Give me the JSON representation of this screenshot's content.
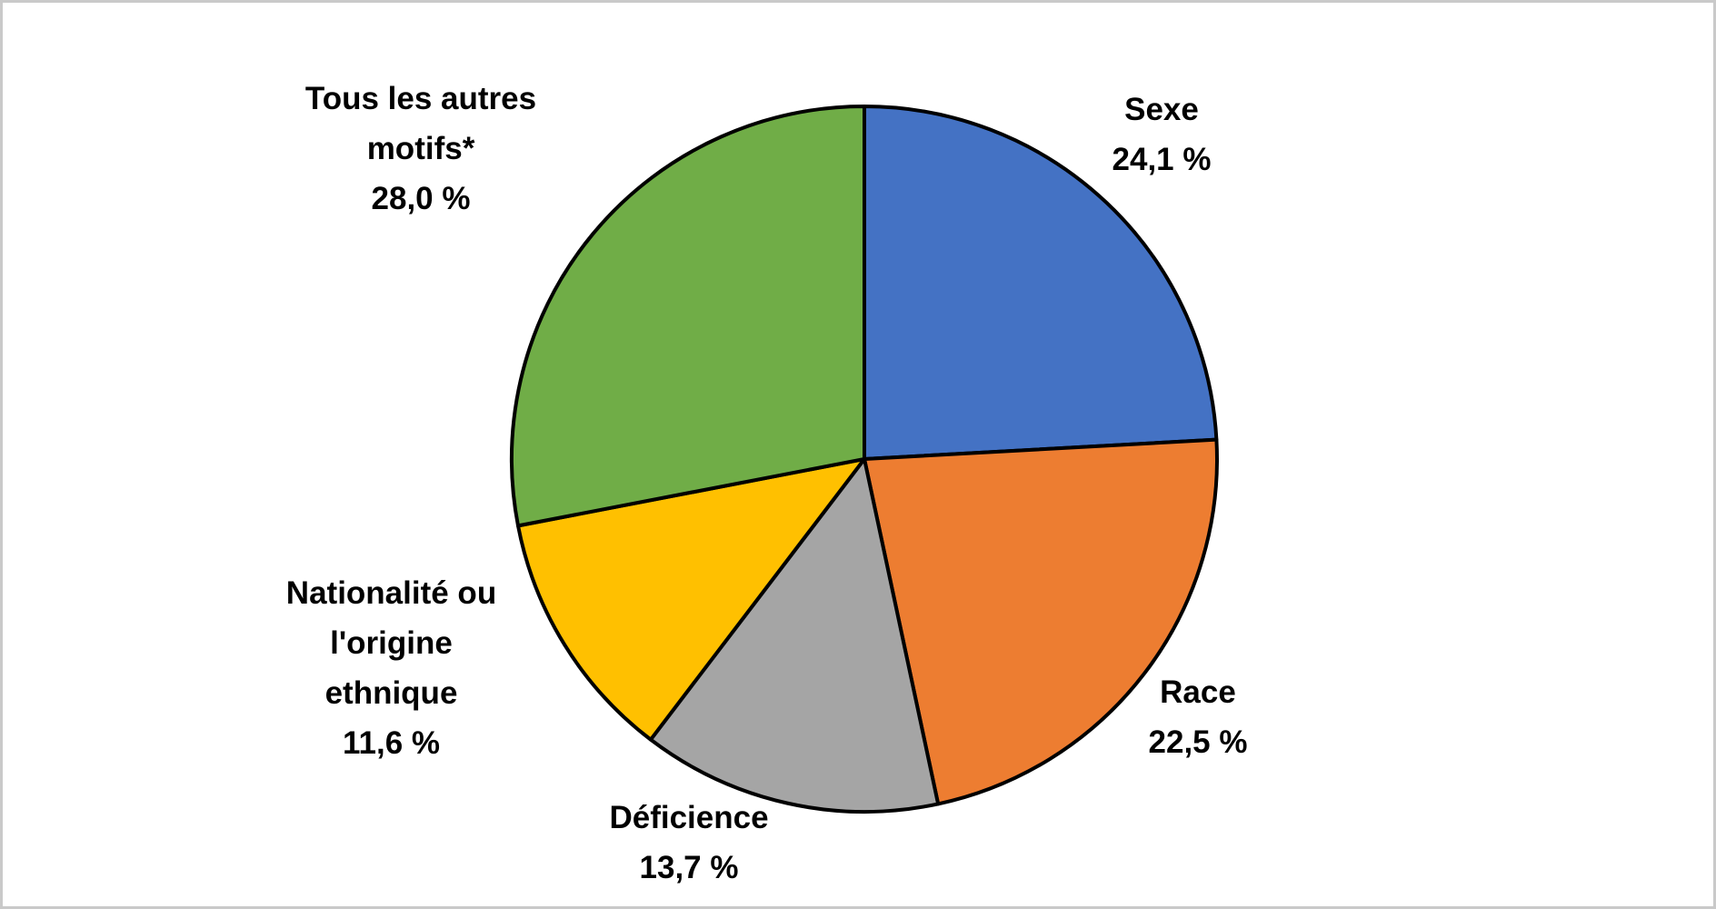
{
  "chart_data": {
    "type": "pie",
    "title": "",
    "categories": [
      "Sexe",
      "Race",
      "Déficience",
      "Nationalité ou l'origine ethnique",
      "Tous les autres motifs*"
    ],
    "values": [
      24.1,
      22.5,
      13.7,
      11.6,
      28.0
    ],
    "value_labels": [
      "24,1 %",
      "22,5 %",
      "13,7 %",
      "11,6 %",
      "28,0 %"
    ],
    "unit": "%",
    "colors": [
      "#4472C4",
      "#ED7D31",
      "#A5A5A5",
      "#FFC000",
      "#70AD47"
    ],
    "slice_stroke": "#000000",
    "ids": [
      "sexe",
      "race",
      "deficience",
      "nationalite-origine-ethnique",
      "tous-les-autres-motifs"
    ],
    "start_angle_deg": 0,
    "direction": "clockwise",
    "legend_position": "none",
    "labels": [
      {
        "name_lines": [
          "Sexe"
        ],
        "value": "24,1 %"
      },
      {
        "name_lines": [
          "Race"
        ],
        "value": "22,5 %"
      },
      {
        "name_lines": [
          "Déficience"
        ],
        "value": "13,7 %"
      },
      {
        "name_lines": [
          "Nationalité ou",
          "l'origine",
          "ethnique"
        ],
        "value": "11,6 %"
      },
      {
        "name_lines": [
          "Tous les autres",
          "motifs*"
        ],
        "value": "28,0 %"
      }
    ]
  }
}
